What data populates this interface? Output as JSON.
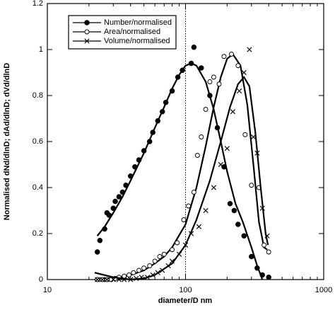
{
  "chart_data": {
    "type": "scatter",
    "xlabel": "diameter/D nm",
    "ylabel": "Normalised dNd/dlnD; dAd/dlnD; dVd/dlnD",
    "xlog": true,
    "xlim": [
      10,
      1000
    ],
    "xticks": [
      10,
      100,
      1000
    ],
    "ylim": [
      0,
      1.2
    ],
    "yticks": [
      0,
      0.2,
      0.4,
      0.6,
      0.8,
      1,
      1.2
    ],
    "vline": 100,
    "legend": "upper left",
    "series": [
      {
        "name": "Number/normalised",
        "marker": "filled-circle",
        "color": "#000000",
        "x": [
          23,
          24,
          26,
          27,
          28,
          30,
          31,
          33,
          35,
          37,
          40,
          43,
          46,
          50,
          55,
          58,
          63,
          68,
          72,
          80,
          88,
          95,
          110,
          115,
          130,
          150,
          170,
          190,
          210,
          225,
          240,
          265,
          300,
          330,
          360,
          400
        ],
        "values": [
          0.12,
          0.17,
          0.22,
          0.29,
          0.28,
          0.31,
          0.34,
          0.36,
          0.38,
          0.41,
          0.45,
          0.49,
          0.52,
          0.56,
          0.6,
          0.64,
          0.69,
          0.73,
          0.77,
          0.82,
          0.88,
          0.91,
          0.94,
          1.01,
          0.92,
          0.8,
          0.66,
          0.49,
          0.33,
          0.3,
          0.24,
          0.19,
          0.1,
          0.05,
          0.02,
          0.01
        ],
        "fit_x": [
          23,
          26,
          30,
          35,
          40,
          50,
          60,
          70,
          80,
          90,
          100,
          110,
          120,
          140,
          160,
          180,
          200,
          230,
          260,
          300,
          330,
          360
        ],
        "fit_values": [
          0.19,
          0.23,
          0.29,
          0.36,
          0.43,
          0.55,
          0.66,
          0.75,
          0.83,
          0.89,
          0.93,
          0.94,
          0.93,
          0.86,
          0.74,
          0.6,
          0.47,
          0.33,
          0.25,
          0.14,
          0.06,
          0
        ]
      },
      {
        "name": "Area/normalised",
        "marker": "open-circle",
        "color": "#000000",
        "x": [
          23,
          25,
          27,
          29,
          31,
          33,
          36,
          39,
          42,
          46,
          50,
          55,
          60,
          65,
          70,
          80,
          87,
          97,
          105,
          115,
          122,
          130,
          140,
          150,
          160,
          175,
          190,
          215,
          240,
          270,
          300,
          340,
          370,
          400
        ],
        "values": [
          0,
          0,
          0,
          0,
          0.005,
          0.01,
          0.015,
          0.02,
          0.03,
          0.04,
          0.05,
          0.06,
          0.08,
          0.1,
          0.11,
          0.13,
          0.16,
          0.26,
          0.32,
          0.38,
          0.54,
          0.62,
          0.74,
          0.86,
          0.88,
          0.85,
          0.97,
          0.98,
          0.93,
          0.63,
          0.41,
          0.4,
          0.15,
          0.12
        ],
        "fit_x": [
          22,
          30,
          40,
          50,
          60,
          70,
          80,
          100,
          120,
          140,
          160,
          180,
          200,
          220,
          250,
          280,
          310,
          340,
          370,
          390
        ],
        "fit_values": [
          0,
          0.005,
          0.02,
          0.04,
          0.07,
          0.1,
          0.14,
          0.24,
          0.4,
          0.58,
          0.75,
          0.88,
          0.96,
          0.98,
          0.93,
          0.76,
          0.5,
          0.25,
          0.14,
          0.13
        ]
      },
      {
        "name": "Volume/normalised",
        "marker": "cross",
        "color": "#000000",
        "x": [
          23,
          25,
          27,
          30,
          33,
          36,
          40,
          44,
          48,
          53,
          58,
          63,
          68,
          75,
          80,
          90,
          100,
          110,
          125,
          140,
          160,
          180,
          200,
          220,
          245,
          265,
          290,
          310,
          330,
          360,
          390
        ],
        "values": [
          0,
          0,
          0,
          0,
          0,
          0,
          0,
          0.005,
          0.01,
          0.01,
          0.02,
          0.03,
          0.04,
          0.06,
          0.08,
          0.11,
          0.15,
          0.2,
          0.23,
          0.3,
          0.4,
          0.5,
          0.57,
          0.73,
          0.82,
          0.9,
          1,
          0.62,
          0.55,
          0.31,
          0.19
        ],
        "fit_x": [
          22,
          30,
          40,
          50,
          60,
          80,
          100,
          120,
          150,
          180,
          210,
          240,
          265,
          290,
          320,
          350,
          380,
          395
        ],
        "fit_values": [
          0.03,
          0.01,
          0,
          0.005,
          0.02,
          0.07,
          0.15,
          0.26,
          0.43,
          0.6,
          0.75,
          0.85,
          0.88,
          0.84,
          0.64,
          0.4,
          0.2,
          0.15
        ]
      }
    ]
  }
}
